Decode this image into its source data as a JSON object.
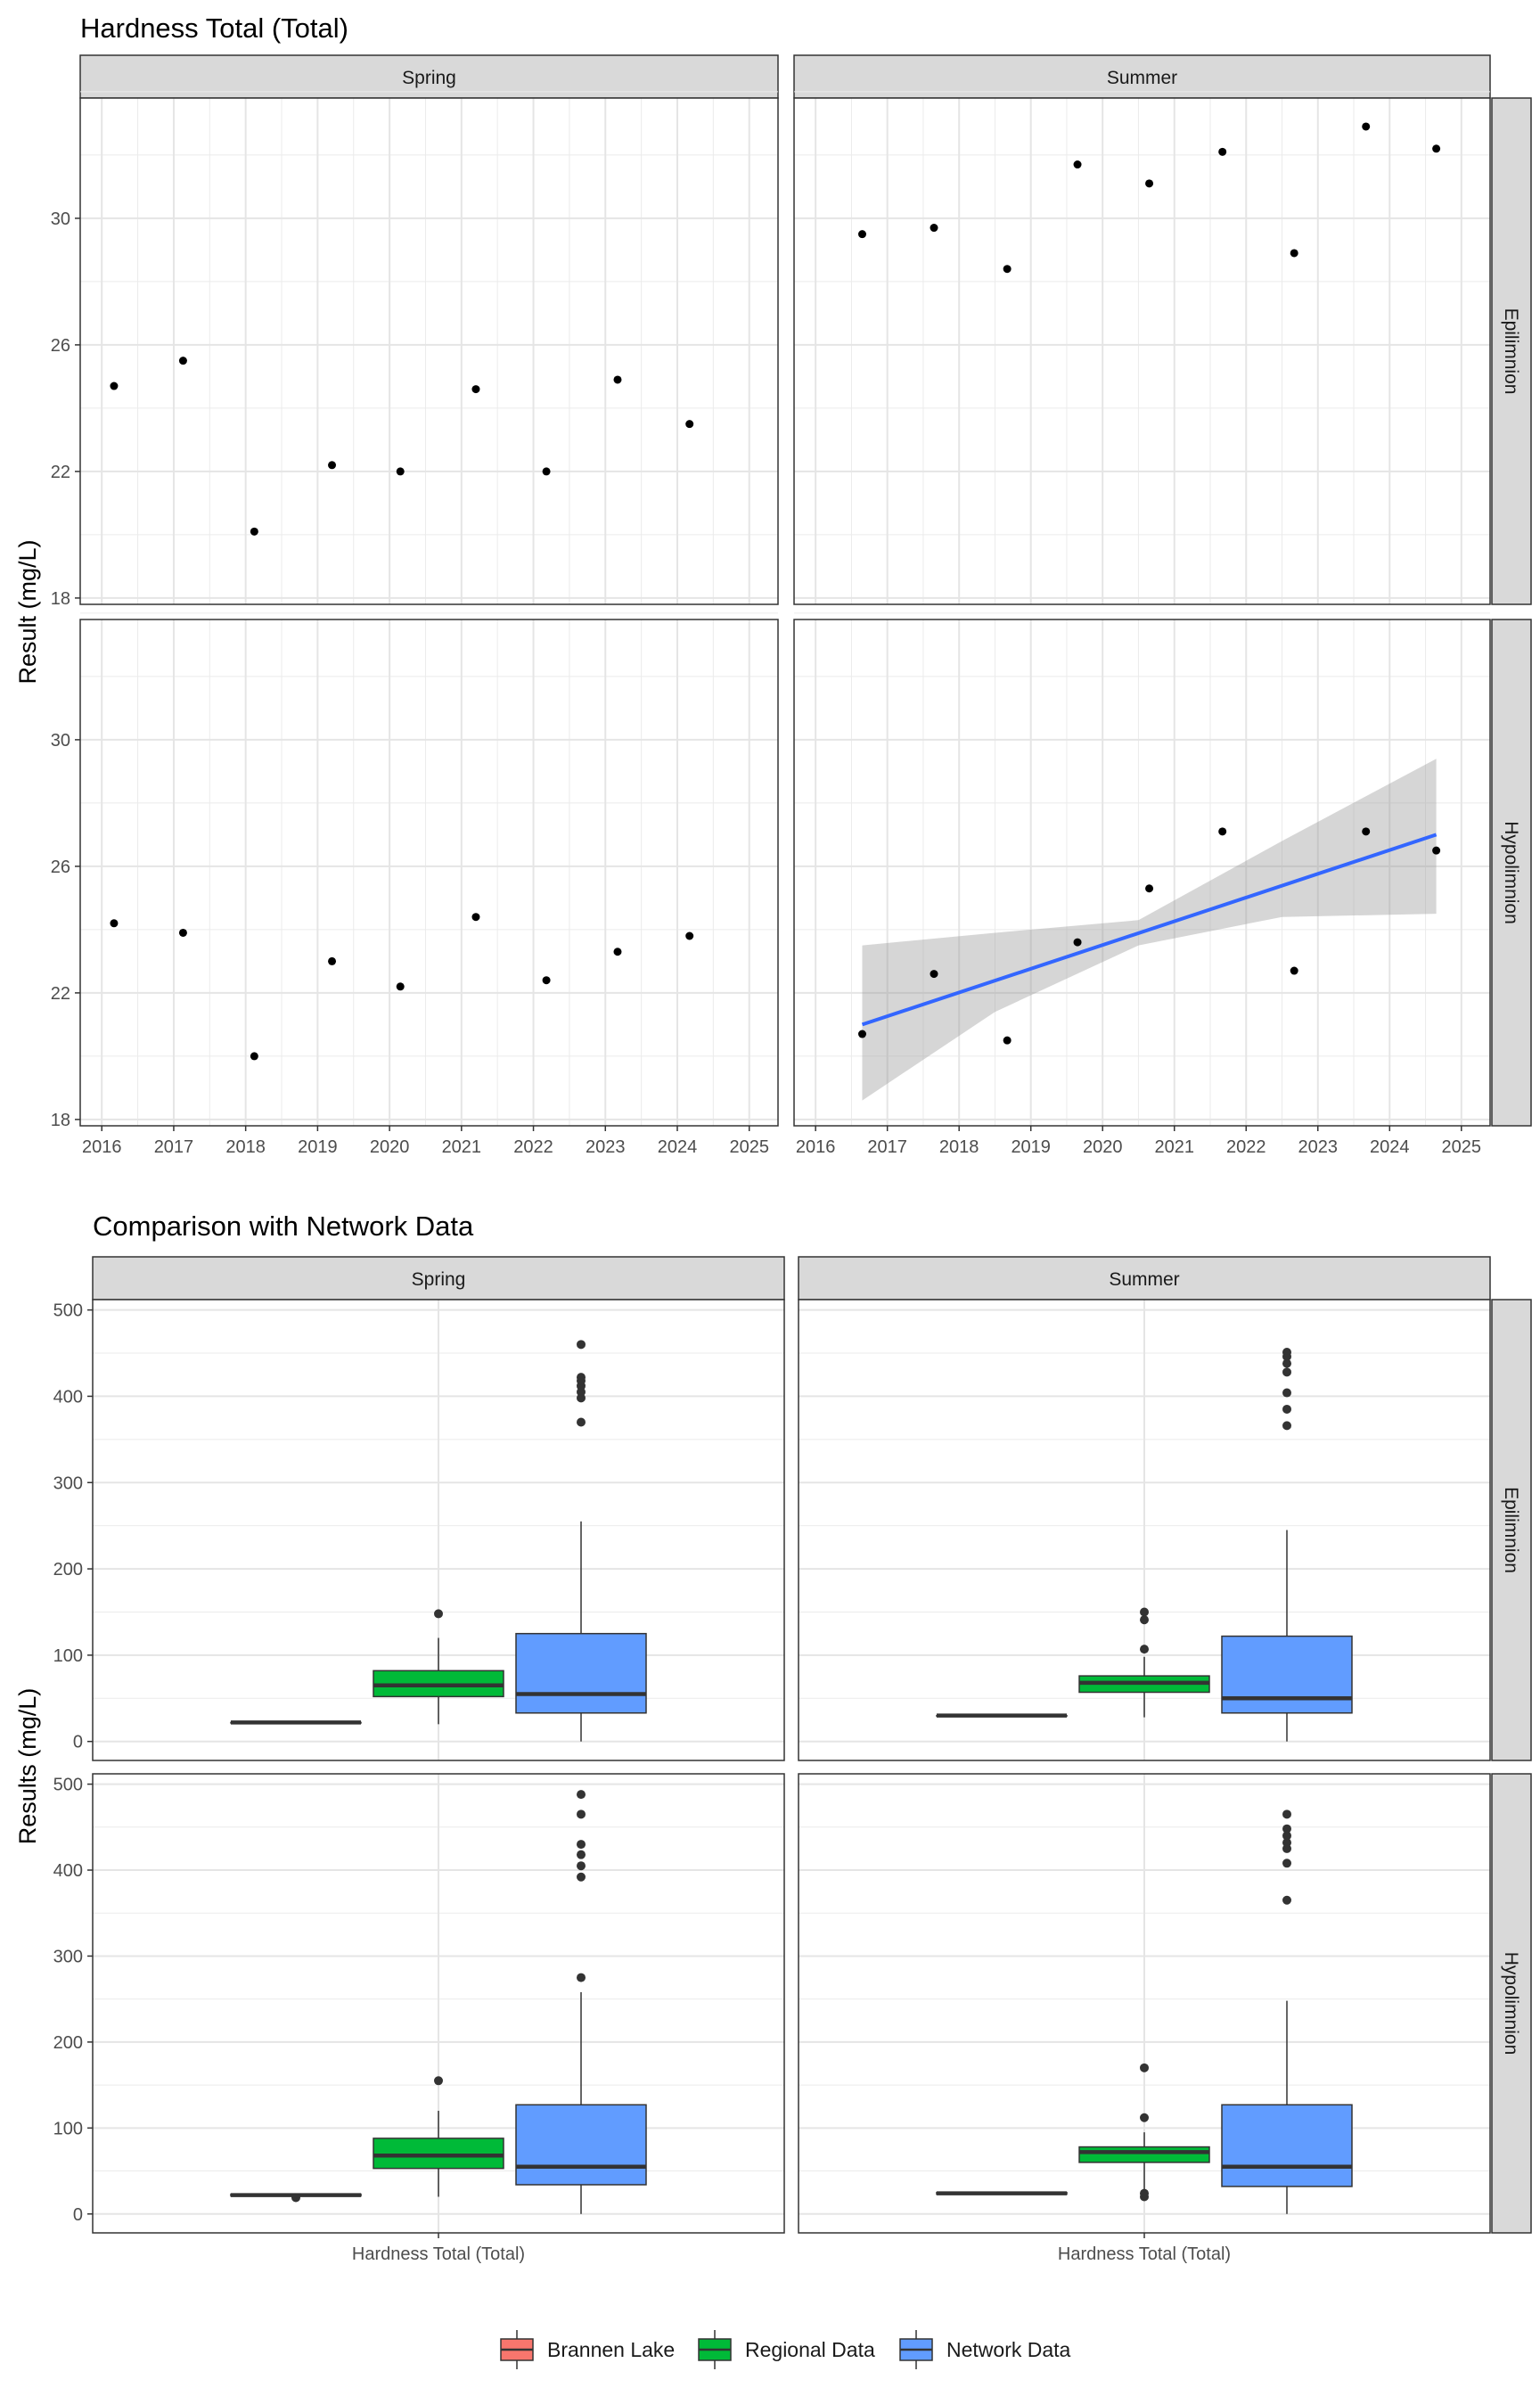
{
  "colors": {
    "strip_fill": "#d9d9d9",
    "grid": "#ebebeb",
    "trend_line": "#3366ff",
    "ribbon": "#999999",
    "brannen_lake": "#f8766d",
    "regional_data": "#00ba38",
    "network_data": "#619cff"
  },
  "chart_data": [
    {
      "type": "scatter",
      "title": "Hardness Total (Total)",
      "ylabel": "Result (mg/L)",
      "xlabel": "",
      "x_ticks": [
        "2016",
        "2017",
        "2018",
        "2019",
        "2020",
        "2021",
        "2022",
        "2023",
        "2024",
        "2025"
      ],
      "xlim": [
        2015.7,
        2025.4
      ],
      "y_ticks": [
        "18",
        "22",
        "26",
        "30"
      ],
      "ylim": [
        17.8,
        33.8
      ],
      "grid": true,
      "columns": [
        "Spring",
        "Summer"
      ],
      "rows": [
        "Epilimnion",
        "Hypolimnion"
      ],
      "panels": [
        {
          "column": "Spring",
          "row": "Epilimnion",
          "points": [
            [
              2016.17,
              24.7
            ],
            [
              2017.13,
              25.5
            ],
            [
              2018.12,
              20.1
            ],
            [
              2019.2,
              22.2
            ],
            [
              2020.15,
              22.0
            ],
            [
              2021.2,
              24.6
            ],
            [
              2022.18,
              22.0
            ],
            [
              2023.17,
              24.9
            ],
            [
              2024.17,
              23.5
            ]
          ]
        },
        {
          "column": "Summer",
          "row": "Epilimnion",
          "points": [
            [
              2016.65,
              29.5
            ],
            [
              2017.65,
              29.7
            ],
            [
              2018.67,
              28.4
            ],
            [
              2019.65,
              31.7
            ],
            [
              2020.65,
              31.1
            ],
            [
              2021.67,
              32.1
            ],
            [
              2022.67,
              28.9
            ],
            [
              2023.67,
              32.9
            ],
            [
              2024.65,
              32.2
            ]
          ]
        },
        {
          "column": "Spring",
          "row": "Hypolimnion",
          "points": [
            [
              2016.17,
              24.2
            ],
            [
              2017.13,
              23.9
            ],
            [
              2018.12,
              20.0
            ],
            [
              2019.2,
              23.0
            ],
            [
              2020.15,
              22.2
            ],
            [
              2021.2,
              24.4
            ],
            [
              2022.18,
              22.4
            ],
            [
              2023.17,
              23.3
            ],
            [
              2024.17,
              23.8
            ]
          ]
        },
        {
          "column": "Summer",
          "row": "Hypolimnion",
          "points": [
            [
              2016.65,
              20.7
            ],
            [
              2017.65,
              22.6
            ],
            [
              2018.67,
              20.5
            ],
            [
              2019.65,
              23.6
            ],
            [
              2020.65,
              25.3
            ],
            [
              2021.67,
              27.1
            ],
            [
              2022.67,
              22.7
            ],
            [
              2023.67,
              27.1
            ],
            [
              2024.65,
              26.5
            ]
          ],
          "trend": {
            "x": [
              2016.65,
              2024.65
            ],
            "fit": [
              21.0,
              27.0
            ],
            "lower": [
              18.6,
              24.5
            ],
            "upper": [
              23.5,
              29.4
            ],
            "ribbon_x": [
              2016.65,
              2018.5,
              2020.5,
              2022.5,
              2024.65
            ],
            "ribbon_lower": [
              18.6,
              21.4,
              23.5,
              24.4,
              24.5
            ],
            "ribbon_upper": [
              23.5,
              23.9,
              24.3,
              26.8,
              29.4
            ]
          }
        }
      ]
    },
    {
      "type": "box",
      "title": "Comparison with Network Data",
      "ylabel": "Results (mg/L)",
      "category": "Hardness Total (Total)",
      "y_ticks": [
        "0",
        "100",
        "200",
        "300",
        "400",
        "500"
      ],
      "ylim": [
        -22,
        512
      ],
      "grid": true,
      "columns": [
        "Spring",
        "Summer"
      ],
      "rows": [
        "Epilimnion",
        "Hypolimnion"
      ],
      "groups": [
        "Brannen Lake",
        "Regional Data",
        "Network Data"
      ],
      "legend_position": "bottom",
      "panels": [
        {
          "column": "Spring",
          "row": "Epilimnion",
          "boxes": [
            {
              "group": "Brannen Lake",
              "lower_whisker": 22,
              "q1": 22,
              "median": 22,
              "q3": 22,
              "upper_whisker": 22,
              "outliers": []
            },
            {
              "group": "Regional Data",
              "lower_whisker": 20,
              "q1": 52,
              "median": 65,
              "q3": 82,
              "upper_whisker": 120,
              "outliers": [
                148
              ]
            },
            {
              "group": "Network Data",
              "lower_whisker": 0,
              "q1": 33,
              "median": 55,
              "q3": 125,
              "upper_whisker": 255,
              "outliers": [
                370,
                398,
                405,
                412,
                418,
                422,
                460
              ]
            }
          ]
        },
        {
          "column": "Summer",
          "row": "Epilimnion",
          "boxes": [
            {
              "group": "Brannen Lake",
              "lower_whisker": 30,
              "q1": 30,
              "median": 30,
              "q3": 30,
              "upper_whisker": 30,
              "outliers": []
            },
            {
              "group": "Regional Data",
              "lower_whisker": 28,
              "q1": 57,
              "median": 68,
              "q3": 76,
              "upper_whisker": 98,
              "outliers": [
                107,
                141,
                150
              ]
            },
            {
              "group": "Network Data",
              "lower_whisker": 0,
              "q1": 33,
              "median": 50,
              "q3": 122,
              "upper_whisker": 245,
              "outliers": [
                366,
                385,
                404,
                428,
                438,
                446,
                451
              ]
            }
          ]
        },
        {
          "column": "Spring",
          "row": "Hypolimnion",
          "boxes": [
            {
              "group": "Brannen Lake",
              "lower_whisker": 21,
              "q1": 21,
              "median": 22,
              "q3": 23,
              "upper_whisker": 23,
              "outliers": [
                19
              ]
            },
            {
              "group": "Regional Data",
              "lower_whisker": 20,
              "q1": 53,
              "median": 68,
              "q3": 88,
              "upper_whisker": 120,
              "outliers": [
                155
              ]
            },
            {
              "group": "Network Data",
              "lower_whisker": 0,
              "q1": 34,
              "median": 55,
              "q3": 127,
              "upper_whisker": 258,
              "outliers": [
                275,
                392,
                405,
                418,
                430,
                465,
                488
              ]
            }
          ]
        },
        {
          "column": "Summer",
          "row": "Hypolimnion",
          "boxes": [
            {
              "group": "Brannen Lake",
              "lower_whisker": 23,
              "q1": 23,
              "median": 24,
              "q3": 25,
              "upper_whisker": 25,
              "outliers": []
            },
            {
              "group": "Regional Data",
              "lower_whisker": 28,
              "q1": 60,
              "median": 72,
              "q3": 78,
              "upper_whisker": 95,
              "outliers": [
                20,
                24,
                112,
                170
              ]
            },
            {
              "group": "Network Data",
              "lower_whisker": 0,
              "q1": 32,
              "median": 55,
              "q3": 127,
              "upper_whisker": 248,
              "outliers": [
                365,
                408,
                425,
                432,
                440,
                448,
                465
              ]
            }
          ]
        }
      ]
    }
  ]
}
